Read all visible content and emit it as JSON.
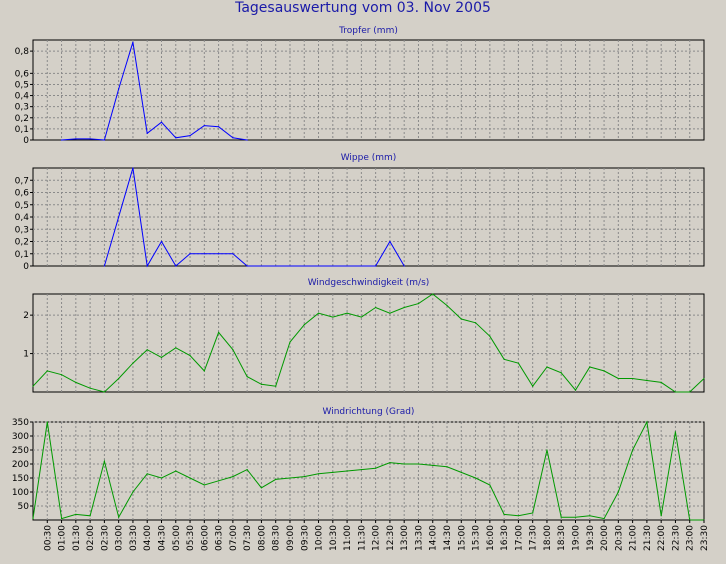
{
  "title": "Tagesauswertung vom 03. Nov 2005",
  "chart_data": [
    {
      "type": "line",
      "title": "Tropfer (mm)",
      "color": "#0000ff",
      "ylim": [
        0,
        0.9
      ],
      "yticks": [
        0,
        0.1,
        0.2,
        0.3,
        0.4,
        0.5,
        0.6,
        0.8
      ],
      "ytick_labels": [
        "0",
        "0,1",
        "0,2",
        "0,3",
        "0,4",
        "0,5",
        "0,6",
        "0,8"
      ],
      "x": [
        2,
        3,
        4,
        5,
        6,
        7,
        8,
        9,
        10,
        11,
        12,
        13,
        14,
        15
      ],
      "y": [
        0,
        0.01,
        0.01,
        0,
        0.46,
        0.88,
        0.06,
        0.16,
        0.02,
        0.04,
        0.13,
        0.12,
        0.02,
        0
      ]
    },
    {
      "type": "line",
      "title": "Wippe (mm)",
      "color": "#0000ff",
      "ylim": [
        0,
        0.8
      ],
      "yticks": [
        0,
        0.1,
        0.2,
        0.3,
        0.4,
        0.5,
        0.6,
        0.7
      ],
      "ytick_labels": [
        "0",
        "0,1",
        "0,2",
        "0,3",
        "0,4",
        "0,5",
        "0,6",
        "0,7"
      ],
      "x": [
        5,
        7,
        8,
        9,
        10,
        11,
        12,
        13,
        14,
        15,
        24,
        25,
        26
      ],
      "y": [
        0,
        0.8,
        0,
        0.2,
        0,
        0.1,
        0.1,
        0.1,
        0.1,
        0,
        0,
        0.2,
        0
      ]
    },
    {
      "type": "line",
      "title": "Windgeschwindigkeit (m/s)",
      "color": "#009900",
      "ylim": [
        0,
        2.55
      ],
      "yticks": [
        1,
        2
      ],
      "ytick_labels": [
        "1",
        "2"
      ],
      "x": [
        0,
        1,
        2,
        3,
        4,
        5,
        6,
        7,
        8,
        9,
        10,
        11,
        12,
        13,
        14,
        15,
        16,
        17,
        18,
        19,
        20,
        21,
        22,
        23,
        24,
        25,
        26,
        27,
        28,
        29,
        30,
        31,
        32,
        33,
        34,
        35,
        36,
        37,
        38,
        39,
        40,
        41,
        42,
        43,
        44,
        45,
        46,
        47
      ],
      "y": [
        0.15,
        0.55,
        0.45,
        0.25,
        0.1,
        0.0,
        0.35,
        0.75,
        1.1,
        0.9,
        1.15,
        0.95,
        0.55,
        1.55,
        1.1,
        0.4,
        0.2,
        0.15,
        1.3,
        1.75,
        2.05,
        1.95,
        2.05,
        1.95,
        2.2,
        2.05,
        2.2,
        2.3,
        2.55,
        2.25,
        1.9,
        1.8,
        1.45,
        0.85,
        0.75,
        0.15,
        0.65,
        0.5,
        0.05,
        0.65,
        0.55,
        0.35,
        0.35,
        0.3,
        0.25,
        0.0,
        0.0,
        0.35
      ]
    },
    {
      "type": "line",
      "title": "Windrichtung (Grad)",
      "color": "#009900",
      "ylim": [
        0,
        350
      ],
      "yticks": [
        50,
        100,
        150,
        200,
        250,
        300,
        350
      ],
      "ytick_labels": [
        "50",
        "100",
        "150",
        "200",
        "250",
        "300",
        "350"
      ],
      "xtick_labels": [
        "00:30",
        "01:00",
        "01:30",
        "02:00",
        "02:30",
        "03:00",
        "03:30",
        "04:00",
        "04:30",
        "05:00",
        "05:30",
        "06:00",
        "06:30",
        "07:00",
        "07:30",
        "08:00",
        "08:30",
        "09:00",
        "09:30",
        "10:00",
        "10:30",
        "11:00",
        "11:30",
        "12:00",
        "12:30",
        "13:00",
        "13:30",
        "14:00",
        "14:30",
        "15:00",
        "15:30",
        "16:00",
        "16:30",
        "17:00",
        "17:30",
        "18:00",
        "18:30",
        "19:00",
        "19:30",
        "20:00",
        "20:30",
        "21:00",
        "21:30",
        "22:00",
        "22:30",
        "23:00",
        "23:30"
      ],
      "x": [
        0,
        1,
        2,
        3,
        4,
        5,
        6,
        7,
        8,
        9,
        10,
        11,
        12,
        13,
        14,
        15,
        16,
        17,
        18,
        19,
        20,
        21,
        22,
        23,
        24,
        25,
        26,
        27,
        28,
        29,
        30,
        31,
        32,
        33,
        34,
        35,
        36,
        37,
        38,
        39,
        40,
        41,
        42,
        43,
        44,
        45,
        46,
        47
      ],
      "y": [
        5,
        350,
        5,
        20,
        15,
        210,
        10,
        100,
        165,
        150,
        175,
        150,
        125,
        140,
        155,
        180,
        115,
        145,
        150,
        155,
        165,
        170,
        175,
        180,
        185,
        205,
        200,
        200,
        195,
        190,
        170,
        150,
        125,
        20,
        15,
        25,
        250,
        10,
        10,
        15,
        5,
        100,
        250,
        350,
        15,
        315,
        0,
        0
      ]
    }
  ]
}
